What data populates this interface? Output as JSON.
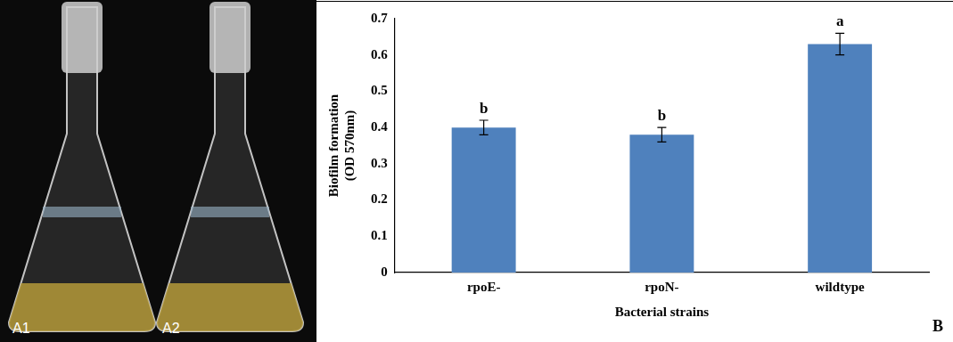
{
  "photo_labels": [
    "A1",
    "A2"
  ],
  "chart_data": {
    "type": "bar",
    "panel_label": "B",
    "categories": [
      "rpoE-",
      "rpoN-",
      "wildtype"
    ],
    "values": [
      0.4,
      0.38,
      0.63
    ],
    "errors": [
      0.02,
      0.02,
      0.03
    ],
    "annotations": [
      "b",
      "b",
      "a"
    ],
    "color": "#4f81bd",
    "x_label": "Bacterial strains",
    "y_label": [
      "Biofilm formation",
      "(OD 570nm)"
    ],
    "ylim": [
      0,
      0.7
    ],
    "yticks": [
      0,
      0.1,
      0.2,
      0.3,
      0.4,
      0.5,
      0.6,
      0.7
    ],
    "grid": false
  }
}
